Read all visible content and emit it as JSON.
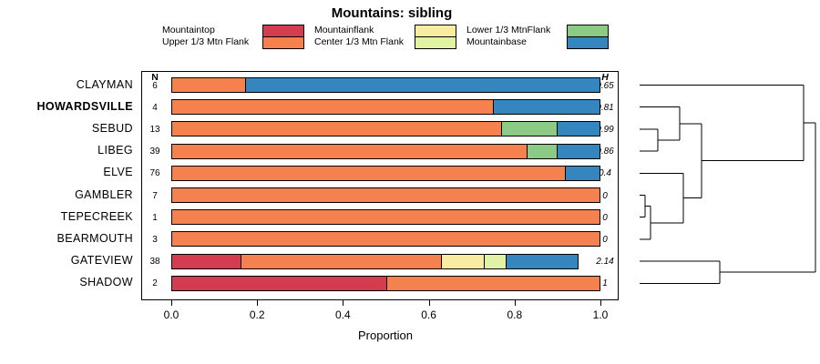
{
  "title": "Mountains: sibling",
  "chart_data": {
    "type": "bar",
    "variant": "horizontal-stacked",
    "title": "Mountains: sibling",
    "xlabel": "Proportion",
    "xlim": [
      0,
      1
    ],
    "x_ticks": [
      "0.0",
      "0.2",
      "0.4",
      "0.6",
      "0.8",
      "1.0"
    ],
    "n_header": "N",
    "h_header": "H",
    "grid": false,
    "legend_position": "top",
    "categories": [
      {
        "name": "Mountaintop",
        "color": "#d43d4f"
      },
      {
        "name": "Upper 1/3 Mtn Flank",
        "color": "#f5824e"
      },
      {
        "name": "Mountainflank",
        "color": "#f8eca0"
      },
      {
        "name": "Center 1/3 Mtn Flank",
        "color": "#e2f2a4"
      },
      {
        "name": "Lower 1/3 MtnFlank",
        "color": "#8bcb86"
      },
      {
        "name": "Mountainbase",
        "color": "#3585be"
      }
    ],
    "rows": [
      {
        "label": "CLAYMAN",
        "bold": false,
        "n": "6",
        "h": "0.65",
        "segments": [
          {
            "category": "Upper 1/3 Mtn Flank",
            "value": 0.17
          },
          {
            "category": "Mountainbase",
            "value": 0.83
          }
        ]
      },
      {
        "label": "HOWARDSVILLE",
        "bold": true,
        "n": "4",
        "h": "0.81",
        "segments": [
          {
            "category": "Upper 1/3 Mtn Flank",
            "value": 0.75
          },
          {
            "category": "Mountainbase",
            "value": 0.25
          }
        ]
      },
      {
        "label": "SEBUD",
        "bold": false,
        "n": "13",
        "h": "0.99",
        "segments": [
          {
            "category": "Upper 1/3 Mtn Flank",
            "value": 0.77
          },
          {
            "category": "Lower 1/3 MtnFlank",
            "value": 0.13
          },
          {
            "category": "Mountainbase",
            "value": 0.1
          }
        ]
      },
      {
        "label": "LIBEG",
        "bold": false,
        "n": "39",
        "h": "0.86",
        "segments": [
          {
            "category": "Upper 1/3 Mtn Flank",
            "value": 0.83
          },
          {
            "category": "Lower 1/3 MtnFlank",
            "value": 0.07
          },
          {
            "category": "Mountainbase",
            "value": 0.1
          }
        ]
      },
      {
        "label": "ELVE",
        "bold": false,
        "n": "76",
        "h": "0.4",
        "segments": [
          {
            "category": "Upper 1/3 Mtn Flank",
            "value": 0.92
          },
          {
            "category": "Mountainbase",
            "value": 0.08
          }
        ]
      },
      {
        "label": "GAMBLER",
        "bold": false,
        "n": "7",
        "h": "0",
        "segments": [
          {
            "category": "Upper 1/3 Mtn Flank",
            "value": 1.0
          }
        ]
      },
      {
        "label": "TEPECREEK",
        "bold": false,
        "n": "1",
        "h": "0",
        "segments": [
          {
            "category": "Upper 1/3 Mtn Flank",
            "value": 1.0
          }
        ]
      },
      {
        "label": "BEARMOUTH",
        "bold": false,
        "n": "3",
        "h": "0",
        "segments": [
          {
            "category": "Upper 1/3 Mtn Flank",
            "value": 1.0
          }
        ]
      },
      {
        "label": "GATEVIEW",
        "bold": false,
        "n": "38",
        "h": "2.14",
        "segments": [
          {
            "category": "Mountaintop",
            "value": 0.16
          },
          {
            "category": "Upper 1/3 Mtn Flank",
            "value": 0.47
          },
          {
            "category": "Mountainflank",
            "value": 0.1
          },
          {
            "category": "Center 1/3 Mtn Flank",
            "value": 0.05
          },
          {
            "category": "Mountainbase",
            "value": 0.17
          }
        ]
      },
      {
        "label": "SHADOW",
        "bold": false,
        "n": "2",
        "h": "1",
        "segments": [
          {
            "category": "Mountaintop",
            "value": 0.5
          },
          {
            "category": "Upper 1/3 Mtn Flank",
            "value": 0.5
          }
        ]
      }
    ],
    "dendrogram": {
      "leaf_x": 12,
      "merges": [
        {
          "id": "m1",
          "a": "GAMBLER",
          "b": "TEPECREEK",
          "x": 18
        },
        {
          "id": "m2",
          "a": "m1",
          "b": "BEARMOUTH",
          "x": 24
        },
        {
          "id": "m3",
          "a": "SEBUD",
          "b": "LIBEG",
          "x": 32
        },
        {
          "id": "m4",
          "a": "HOWARDSVILLE",
          "b": "m3",
          "x": 56
        },
        {
          "id": "m5",
          "a": "ELVE",
          "b": "m2",
          "x": 60
        },
        {
          "id": "m6",
          "a": "m4",
          "b": "m5",
          "x": 80
        },
        {
          "id": "m7",
          "a": "GATEVIEW",
          "b": "SHADOW",
          "x": 100
        },
        {
          "id": "m8",
          "a": "CLAYMAN",
          "b": "m6",
          "x": 192
        },
        {
          "id": "m9",
          "a": "m8",
          "b": "m7",
          "x": 205
        }
      ]
    }
  }
}
